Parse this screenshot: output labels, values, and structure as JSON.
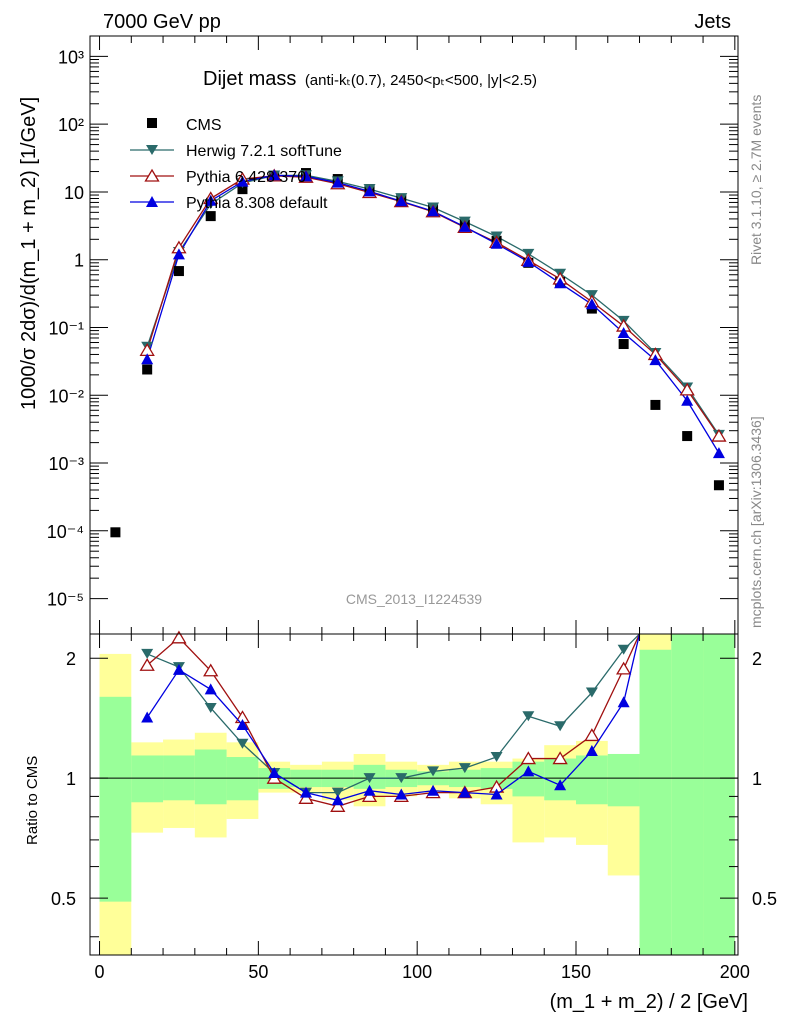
{
  "header": {
    "left": "7000 GeV pp",
    "right": "Jets"
  },
  "side_text": {
    "rivet": "Rivet 3.1.10, ≥ 2.7M events",
    "mcplots": "mcplots.cern.ch [arXiv:1306.3436]"
  },
  "watermark": "CMS_2013_I1224539",
  "title": {
    "main": "Dijet mass",
    "detail": "(anti-kₜ(0.7), 2450<pₜ<500, |y|<2.5)"
  },
  "ylabel_top": "1000/σ 2dσ)/d(m_1 + m_2) [1/GeV]",
  "ylabel_bottom": "Ratio to CMS",
  "xlabel": "(m_1 + m_2) / 2 [GeV]",
  "colors": {
    "cms": "#000000",
    "herwig": "#2a6a6a",
    "pythia6": "#a01010",
    "pythia8": "#0000e0",
    "band_inner": "#99ff99",
    "band_outer": "#ffff99"
  },
  "chart_data": [
    {
      "type": "scatter",
      "title": "Dijet mass",
      "xlabel": "(m_1 + m_2) / 2 [GeV]",
      "ylabel": "1000/σ 2dσ)/d(m_1 + m_2) [1/GeV]",
      "xlim": [
        -3,
        201
      ],
      "ylim": [
        3e-06,
        2000
      ],
      "yscale": "log",
      "grid": false,
      "legend": "top-left",
      "x": [
        5,
        15,
        25,
        35,
        45,
        55,
        65,
        75,
        85,
        95,
        105,
        115,
        125,
        135,
        145,
        155,
        165,
        175,
        185,
        195
      ],
      "xticks": [
        0,
        50,
        100,
        150,
        200
      ],
      "yticks": [
        "10⁻⁵",
        "10⁻⁴",
        "10⁻³",
        "10⁻²",
        "10⁻¹",
        "1",
        "10",
        "10²",
        "10³"
      ],
      "series": [
        {
          "name": "CMS",
          "marker": "square",
          "values": [
            9.5e-05,
            0.024,
            0.68,
            4.4,
            11,
            17,
            19,
            15.5,
            11,
            8,
            5.6,
            3.3,
            1.9,
            0.9,
            0.47,
            0.19,
            0.057,
            0.0072,
            0.0025,
            0.00047
          ]
        },
        {
          "name": "Herwig 7.2.1 softTune",
          "marker": "triangle-down",
          "values": [
            null,
            0.052,
            1.3,
            6.6,
            13.5,
            17.5,
            17.6,
            14.3,
            11,
            8.1,
            5.9,
            3.65,
            2.2,
            1.22,
            0.62,
            0.3,
            0.125,
            0.042,
            0.013,
            0.0026
          ]
        },
        {
          "name": "Pythia 6.428 370",
          "marker": "triangle-open",
          "values": [
            null,
            0.046,
            1.5,
            8,
            15.5,
            17.3,
            16.5,
            13.2,
            9.8,
            7.2,
            5.1,
            3,
            1.8,
            0.98,
            0.52,
            0.24,
            0.105,
            0.04,
            0.012,
            0.0025
          ]
        },
        {
          "name": "Pythia 8.308 default",
          "marker": "triangle-up",
          "values": [
            null,
            0.034,
            1.2,
            7.4,
            14.2,
            17.6,
            17,
            13.7,
            10.2,
            7.3,
            5.2,
            3.05,
            1.72,
            0.93,
            0.45,
            0.22,
            0.083,
            0.033,
            0.0083,
            0.0014
          ]
        }
      ]
    },
    {
      "type": "line",
      "ylabel": "Ratio to CMS",
      "xlabel": "(m_1 + m_2) / 2 [GeV]",
      "xlim": [
        -3,
        201
      ],
      "ylim": [
        0.36,
        2.3
      ],
      "yscale": "log",
      "yticks": [
        "0.5",
        "1",
        "2"
      ],
      "x": [
        15,
        25,
        35,
        45,
        55,
        65,
        75,
        85,
        95,
        105,
        115,
        125,
        135,
        145,
        155,
        165
      ],
      "series": [
        {
          "name": "Herwig 7.2.1 softTune",
          "values": [
            2.05,
            1.9,
            1.5,
            1.22,
            1.03,
            0.92,
            0.92,
            1.0,
            1.0,
            1.04,
            1.06,
            1.13,
            1.43,
            1.35,
            1.64,
            2.1
          ]
        },
        {
          "name": "Pythia 6.428 370",
          "values": [
            1.92,
            2.25,
            1.86,
            1.42,
            1.0,
            0.89,
            0.85,
            0.9,
            0.9,
            0.92,
            0.92,
            0.95,
            1.12,
            1.12,
            1.28,
            1.88
          ]
        },
        {
          "name": "Pythia 8.308 default",
          "values": [
            1.42,
            1.87,
            1.67,
            1.36,
            1.03,
            0.92,
            0.88,
            0.93,
            0.91,
            0.93,
            0.92,
            0.91,
            1.04,
            0.96,
            1.17,
            1.55
          ]
        }
      ],
      "uncertainty_bands": {
        "edges": [
          0,
          10,
          20,
          30,
          40,
          50,
          60,
          70,
          80,
          90,
          100,
          110,
          120,
          130,
          140,
          150,
          160,
          170,
          180,
          190,
          200
        ],
        "inner": [
          [
            0.49,
            1.6
          ],
          [
            0.87,
            1.14
          ],
          [
            0.88,
            1.14
          ],
          [
            0.86,
            1.18
          ],
          [
            0.88,
            1.13
          ],
          [
            0.94,
            1.06
          ],
          [
            0.95,
            1.05
          ],
          [
            0.95,
            1.05
          ],
          [
            0.94,
            1.08
          ],
          [
            0.95,
            1.05
          ],
          [
            0.96,
            1.04
          ],
          [
            0.95,
            1.05
          ],
          [
            0.94,
            1.06
          ],
          [
            0.9,
            1.1
          ],
          [
            0.88,
            1.12
          ],
          [
            0.86,
            1.14
          ],
          [
            0.85,
            1.15
          ],
          [
            0.36,
            2.1
          ],
          [
            0.36,
            2.3
          ],
          [
            0.36,
            2.3
          ]
        ],
        "outer": [
          [
            0.36,
            2.05
          ],
          [
            0.73,
            1.23
          ],
          [
            0.75,
            1.25
          ],
          [
            0.71,
            1.3
          ],
          [
            0.79,
            1.23
          ],
          [
            0.92,
            1.1
          ],
          [
            0.92,
            1.08
          ],
          [
            0.88,
            1.1
          ],
          [
            0.85,
            1.15
          ],
          [
            0.9,
            1.1
          ],
          [
            0.92,
            1.08
          ],
          [
            0.89,
            1.1
          ],
          [
            0.86,
            1.1
          ],
          [
            0.69,
            1.12
          ],
          [
            0.71,
            1.21
          ],
          [
            0.68,
            1.24
          ],
          [
            0.57,
            1.15
          ],
          [
            0.36,
            2.3
          ],
          [
            0.55,
            2.3
          ],
          [
            0.36,
            2.3
          ]
        ]
      }
    }
  ]
}
